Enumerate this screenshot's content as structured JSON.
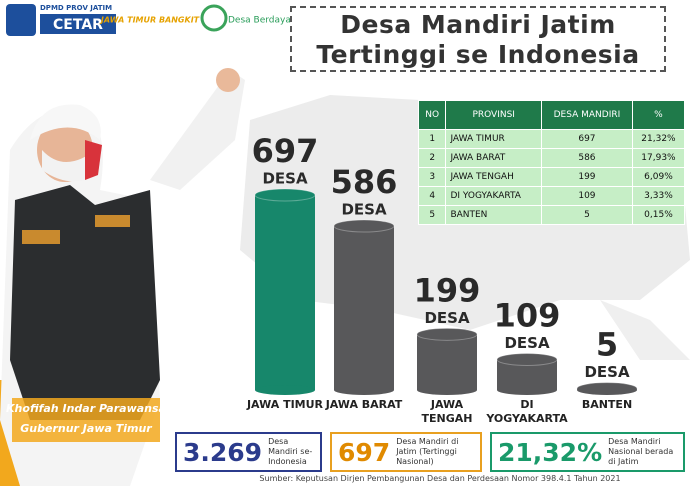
{
  "logos": {
    "dpmd": "DPMD PROV JATIM",
    "cetar": "CETAR",
    "bangkit": "JAWA TIMUR BANGKIT",
    "desa_berdaya": "Desa Berdaya"
  },
  "header": {
    "title_line1": "Desa Mandiri Jatim",
    "title_line2": "Tertinggi se Indonesia"
  },
  "chart_data": {
    "type": "bar",
    "categories": [
      "JAWA TIMUR",
      "JAWA BARAT",
      "JAWA TENGAH",
      "DI YOGYAKARTA",
      "BANTEN"
    ],
    "values": [
      697,
      586,
      199,
      109,
      5
    ],
    "unit_label": "DESA",
    "colors": [
      "#17876b",
      "#58585a",
      "#58585a",
      "#58585a",
      "#58585a"
    ]
  },
  "table": {
    "columns": [
      "NO",
      "PROVINSI",
      "DESA MANDIRI",
      "%"
    ],
    "rows": [
      [
        1,
        "JAWA TIMUR",
        697,
        "21,32%"
      ],
      [
        2,
        "JAWA BARAT",
        586,
        "17,93%"
      ],
      [
        3,
        "JAWA TENGAH",
        199,
        "6,09%"
      ],
      [
        4,
        "DI YOGYAKARTA",
        109,
        "3,33%"
      ],
      [
        5,
        "BANTEN",
        5,
        "0,15%"
      ]
    ]
  },
  "stats": [
    {
      "value": "3.269",
      "label": "Desa Mandiri se-Indonesia"
    },
    {
      "value": 697,
      "label": "Desa Mandiri di Jatim (Tertinggi Nasional)"
    },
    {
      "value": "21,32%",
      "label": "Desa Mandiri Nasional berada di Jatim"
    }
  ],
  "person": {
    "name": "Khofifah Indar Parawansa",
    "role": "Gubernur Jawa Timur"
  },
  "source": "Sumber: Keputusan Dirjen Pembangunan Desa dan Perdesaan Nomor 398.4.1 Tahun 2021"
}
